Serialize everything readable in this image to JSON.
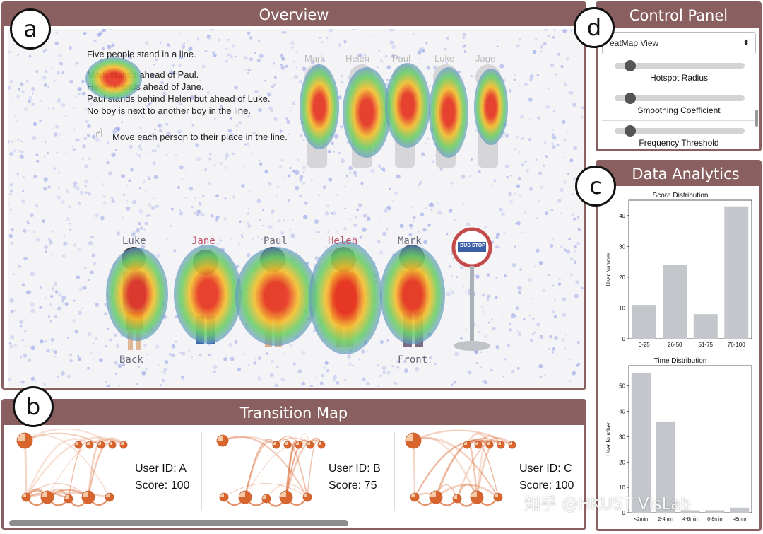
{
  "badges": {
    "a": "a",
    "b": "b",
    "c": "c",
    "d": "d"
  },
  "overview": {
    "title": "Overview",
    "task_lines": [
      "Five people stand in a line.",
      "Mark stands ahead of Paul.",
      "Helen stands ahead of Jane.",
      "Paul stands behind Helen but ahead of Luke.",
      "No boy is next to another boy in the line.",
      "Move each person to their place in the line."
    ],
    "top_names": [
      "Mark",
      "Helen",
      "Paul",
      "Luke",
      "Jane"
    ],
    "bottom_names": [
      "Luke",
      "Jane",
      "Paul",
      "Helen",
      "Mark"
    ],
    "back_label": "Back",
    "front_label": "Front",
    "bus_stop_label": "BUS STOP"
  },
  "control_panel": {
    "title": "Control Panel",
    "view_select": "eatMap View",
    "sliders": [
      {
        "label": "Hotspot Radius",
        "value": 0.12
      },
      {
        "label": "Smoothing Coefficient",
        "value": 0.12
      },
      {
        "label": "Frequency Threshold",
        "value": 0.12
      }
    ]
  },
  "data_analytics": {
    "title": "Data Analytics"
  },
  "chart_data": [
    {
      "type": "bar",
      "title": "Score Distribution",
      "categories": [
        "0-25",
        "26-50",
        "51-75",
        "76-100"
      ],
      "values": [
        11,
        24,
        8,
        43
      ],
      "ylabel": "User Number",
      "xlabel": "",
      "ylim": [
        0,
        45
      ],
      "yticks": [
        0,
        10,
        20,
        30,
        40
      ],
      "color": "#c3c6cb"
    },
    {
      "type": "bar",
      "title": "Time Distribution",
      "categories": [
        "<2min",
        "2-4min",
        "4-6min",
        "6-8min",
        ">8min"
      ],
      "values": [
        55,
        36,
        1,
        1,
        2
      ],
      "ylabel": "User Number",
      "xlabel": "",
      "ylim": [
        0,
        58
      ],
      "yticks": [
        0,
        10,
        20,
        30,
        40,
        50
      ],
      "color": "#c3c6cb"
    }
  ],
  "transition_map": {
    "title": "Transition Map",
    "users": [
      {
        "user_label": "User ID: A",
        "score_label": "Score: 100"
      },
      {
        "user_label": "User ID: B",
        "score_label": "Score: 75"
      },
      {
        "user_label": "User ID: C",
        "score_label": "Score: 100"
      }
    ]
  },
  "watermark": "知乎 @HKUST VisLab",
  "colors": {
    "panel_frame": "#8a5f5f",
    "bar": "#c3c6cb",
    "heat_hot": "#e8321e",
    "heat_warm": "#f5c02c",
    "heat_mid": "#6ccf6a",
    "heat_cool": "#5a7de8",
    "node": "#d9652e"
  },
  "icons": [
    "hand-pointer-icon",
    "bus-stop-sign-icon",
    "select-arrow-icon"
  ]
}
